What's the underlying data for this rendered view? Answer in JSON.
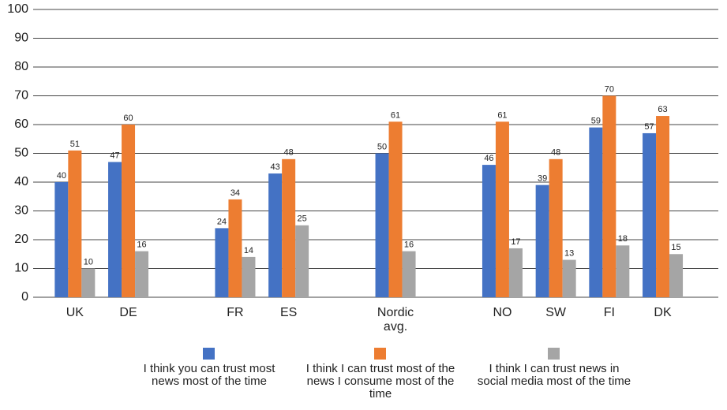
{
  "chart_data": {
    "type": "bar",
    "categories": [
      "UK",
      "DE",
      null,
      "FR",
      "ES",
      null,
      "Nordic avg.",
      null,
      "NO",
      "SW",
      "FI",
      "DK"
    ],
    "series": [
      {
        "name": "I think you can trust most news most of the time",
        "color": "#4472c4",
        "values": [
          40,
          47,
          null,
          24,
          43,
          null,
          50,
          null,
          46,
          39,
          59,
          57
        ]
      },
      {
        "name": "I think I can trust most of the news I consume most of the time",
        "color": "#ed7d31",
        "values": [
          51,
          60,
          null,
          34,
          48,
          null,
          61,
          null,
          61,
          48,
          70,
          63
        ]
      },
      {
        "name": "I think I can trust news in social media most of the time",
        "color": "#a5a5a5",
        "values": [
          10,
          16,
          null,
          14,
          25,
          null,
          16,
          null,
          17,
          13,
          18,
          15
        ]
      }
    ],
    "ylim": [
      0,
      100
    ],
    "yticks": [
      0,
      10,
      20,
      30,
      40,
      50,
      60,
      70,
      80,
      90,
      100
    ],
    "grid": true,
    "legend": "bottom"
  }
}
